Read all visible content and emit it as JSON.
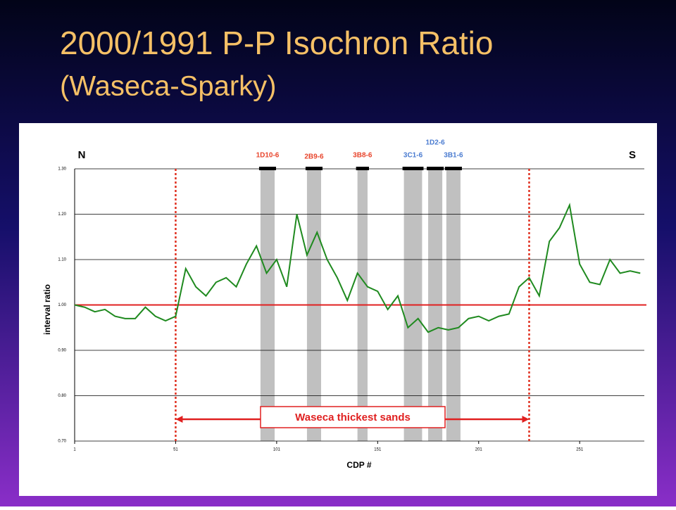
{
  "chart_data": {
    "type": "line",
    "title": "2000/1991 P-P Isochron Ratio",
    "subtitle": "(Waseca-Sparky)",
    "x_label": "CDP #",
    "y_label": "interval ratio",
    "left_label": "N",
    "right_label": "S",
    "x": [
      1,
      6,
      11,
      16,
      21,
      26,
      31,
      36,
      41,
      46,
      51,
      56,
      61,
      66,
      71,
      76,
      81,
      86,
      91,
      96,
      101,
      106,
      111,
      116,
      121,
      126,
      131,
      136,
      141,
      146,
      151,
      156,
      161,
      166,
      171,
      176,
      181,
      186,
      191,
      196,
      201,
      206,
      211,
      216,
      221,
      226,
      231,
      236,
      241,
      246,
      251,
      256,
      261,
      266,
      271,
      276,
      281
    ],
    "series": [
      {
        "name": "interval ratio",
        "color": "#1f8a1f",
        "values": [
          1.0,
          0.995,
          0.985,
          0.99,
          0.975,
          0.97,
          0.97,
          0.995,
          0.975,
          0.965,
          0.975,
          1.08,
          1.04,
          1.02,
          1.05,
          1.06,
          1.04,
          1.09,
          1.13,
          1.07,
          1.1,
          1.04,
          1.2,
          1.11,
          1.16,
          1.1,
          1.06,
          1.01,
          1.07,
          1.04,
          1.03,
          0.99,
          1.02,
          0.95,
          0.97,
          0.94,
          0.95,
          0.945,
          0.95,
          0.97,
          0.975,
          0.965,
          0.975,
          0.98,
          1.04,
          1.06,
          1.02,
          1.14,
          1.17,
          1.22,
          1.09,
          1.05,
          1.045,
          1.1,
          1.07,
          1.075,
          1.07
        ]
      }
    ],
    "xlim": [
      1,
      283
    ],
    "xticks": [
      1,
      51,
      101,
      151,
      201,
      251
    ],
    "ylim": [
      0.7,
      1.3
    ],
    "yticks": [
      {
        "value": 0.7,
        "label": "0.70"
      },
      {
        "value": 0.8,
        "label": "0.80"
      },
      {
        "value": 0.9,
        "label": "0.90"
      },
      {
        "value": 1.0,
        "label": "1.00"
      },
      {
        "value": 1.1,
        "label": "1.10"
      },
      {
        "value": 1.2,
        "label": "1.20"
      },
      {
        "value": 1.3,
        "label": "1.30"
      }
    ],
    "grid": true,
    "ref_y": 1.0,
    "ref_x": [
      51,
      226
    ],
    "annotation": "Waseca thickest sands",
    "zones": [
      {
        "label": "1D10-6",
        "x": [
          93,
          100
        ],
        "color": "#e8452c"
      },
      {
        "label": "2B9-6",
        "x": [
          116,
          123
        ],
        "color": "#e8452c"
      },
      {
        "label": "3B8-6",
        "x": [
          141,
          146
        ],
        "color": "#e8452c"
      },
      {
        "label": "3C1-6",
        "x": [
          164,
          173
        ],
        "color": "#4a7bd0"
      },
      {
        "label": "1D2-6",
        "x": [
          176,
          183
        ],
        "color": "#4a7bd0"
      },
      {
        "label": "3B1-6",
        "x": [
          185,
          192
        ],
        "color": "#4a7bd0"
      }
    ]
  }
}
